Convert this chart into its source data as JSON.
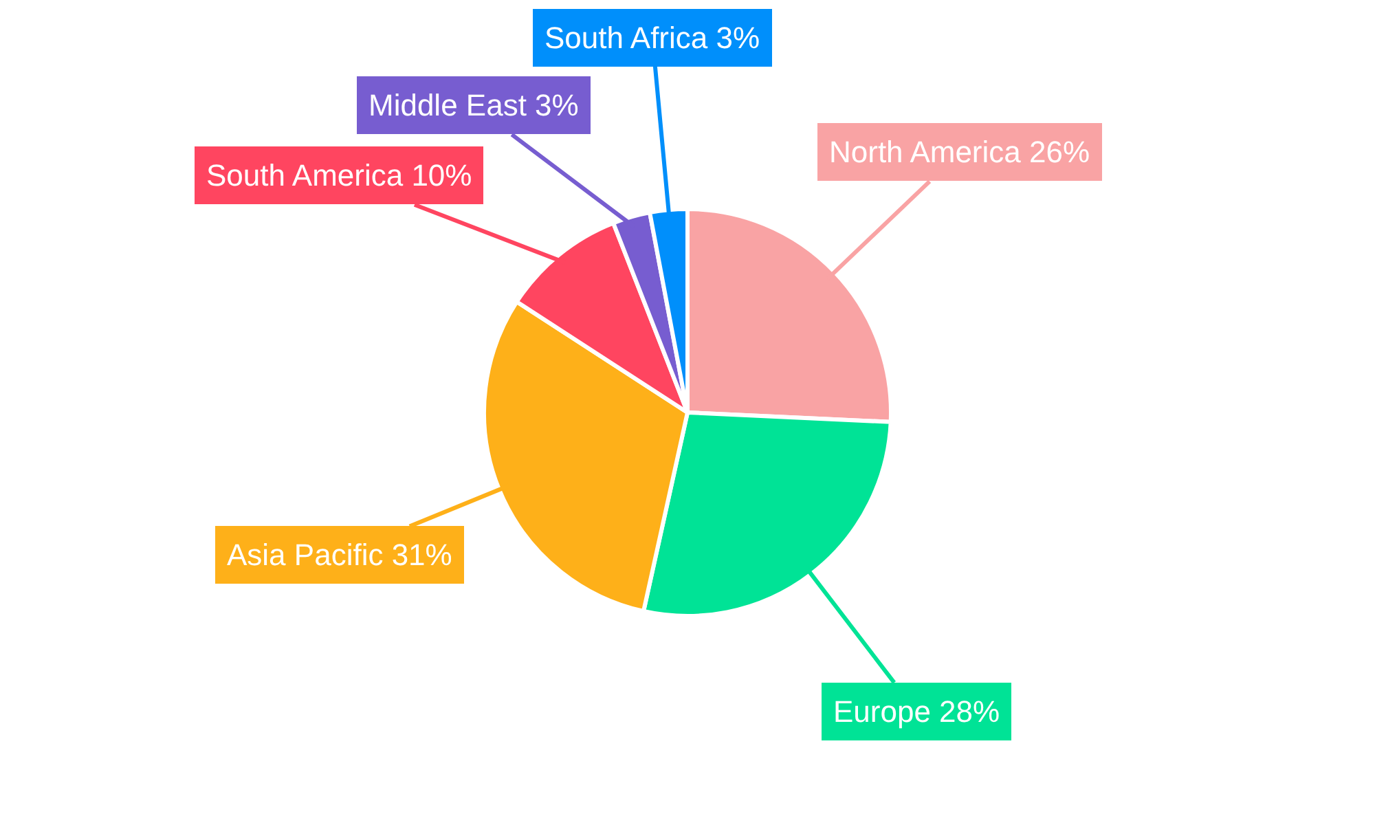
{
  "chart_data": {
    "type": "pie",
    "categories": [
      "North America",
      "Europe",
      "Asia Pacific",
      "South America",
      "Middle East",
      "South Africa"
    ],
    "values": [
      26,
      28,
      31,
      10,
      3,
      3
    ],
    "value_labels": [
      "26%",
      "28%",
      "31%",
      "10%",
      "3%",
      "3%"
    ],
    "colors": [
      "#f9a3a4",
      "#00e396",
      "#feb019",
      "#ff4560",
      "#775dd0",
      "#008ffb"
    ],
    "legend": false
  }
}
